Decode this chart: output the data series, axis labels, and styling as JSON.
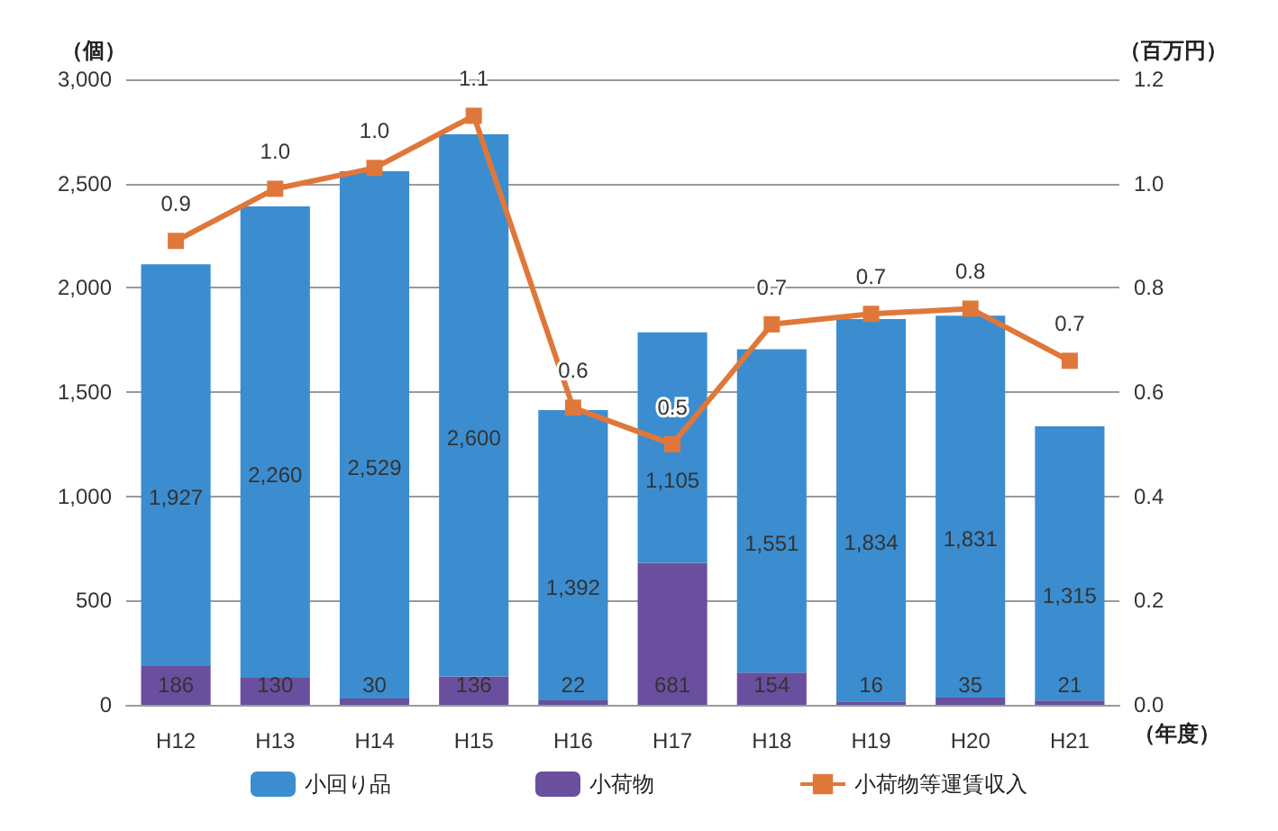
{
  "chart_data": {
    "type": "bar",
    "stacked": true,
    "ylabel": "（個）",
    "y2label": "（百万円）",
    "xlabel": "（年度）",
    "categories": [
      "H12",
      "H13",
      "H14",
      "H15",
      "H16",
      "H17",
      "H18",
      "H19",
      "H20",
      "H21"
    ],
    "series": [
      {
        "name": "小荷物",
        "color": "#6a4f9e",
        "values": [
          186,
          130,
          30,
          136,
          22,
          681,
          154,
          16,
          35,
          21
        ],
        "value_labels": [
          "186",
          "130",
          "30",
          "136",
          "22",
          "681",
          "154",
          "16",
          "35",
          "21"
        ]
      },
      {
        "name": "小回り品",
        "color": "#3b8dd0",
        "values": [
          1927,
          2260,
          2529,
          2600,
          1392,
          1105,
          1551,
          1834,
          1831,
          1315
        ],
        "value_labels": [
          "1,927",
          "2,260",
          "2,529",
          "2,600",
          "1,392",
          "1,105",
          "1,551",
          "1,834",
          "1,831",
          "1,315"
        ]
      },
      {
        "name": "小荷物等運賃収入",
        "type": "line",
        "axis": "y2",
        "color": "#e0773a",
        "marker": "square",
        "values": [
          0.89,
          0.99,
          1.03,
          1.13,
          0.57,
          0.5,
          0.73,
          0.75,
          0.76,
          0.66
        ],
        "value_labels": [
          "0.9",
          "1.0",
          "1.0",
          "1.1",
          "0.6",
          "0.5",
          "0.7",
          "0.7",
          "0.8",
          "0.7"
        ]
      }
    ],
    "ylim": [
      0,
      3000
    ],
    "yticks": [
      {
        "value": 0,
        "label": "0"
      },
      {
        "value": 500,
        "label": "500"
      },
      {
        "value": 1000,
        "label": "1,000"
      },
      {
        "value": 1500,
        "label": "1,500"
      },
      {
        "value": 2000,
        "label": "2,000"
      },
      {
        "value": 2500,
        "label": "2,500"
      },
      {
        "value": 3000,
        "label": "3,000"
      }
    ],
    "y2lim": [
      0,
      1.2
    ],
    "y2ticks": [
      {
        "value": 0,
        "label": "0.0"
      },
      {
        "value": 0.2,
        "label": "0.2"
      },
      {
        "value": 0.4,
        "label": "0.4"
      },
      {
        "value": 0.6,
        "label": "0.6"
      },
      {
        "value": 0.8,
        "label": "0.8"
      },
      {
        "value": 1,
        "label": "1.0"
      },
      {
        "value": 1.2,
        "label": "1.2"
      }
    ],
    "grid": "y",
    "legend": "bottom"
  }
}
